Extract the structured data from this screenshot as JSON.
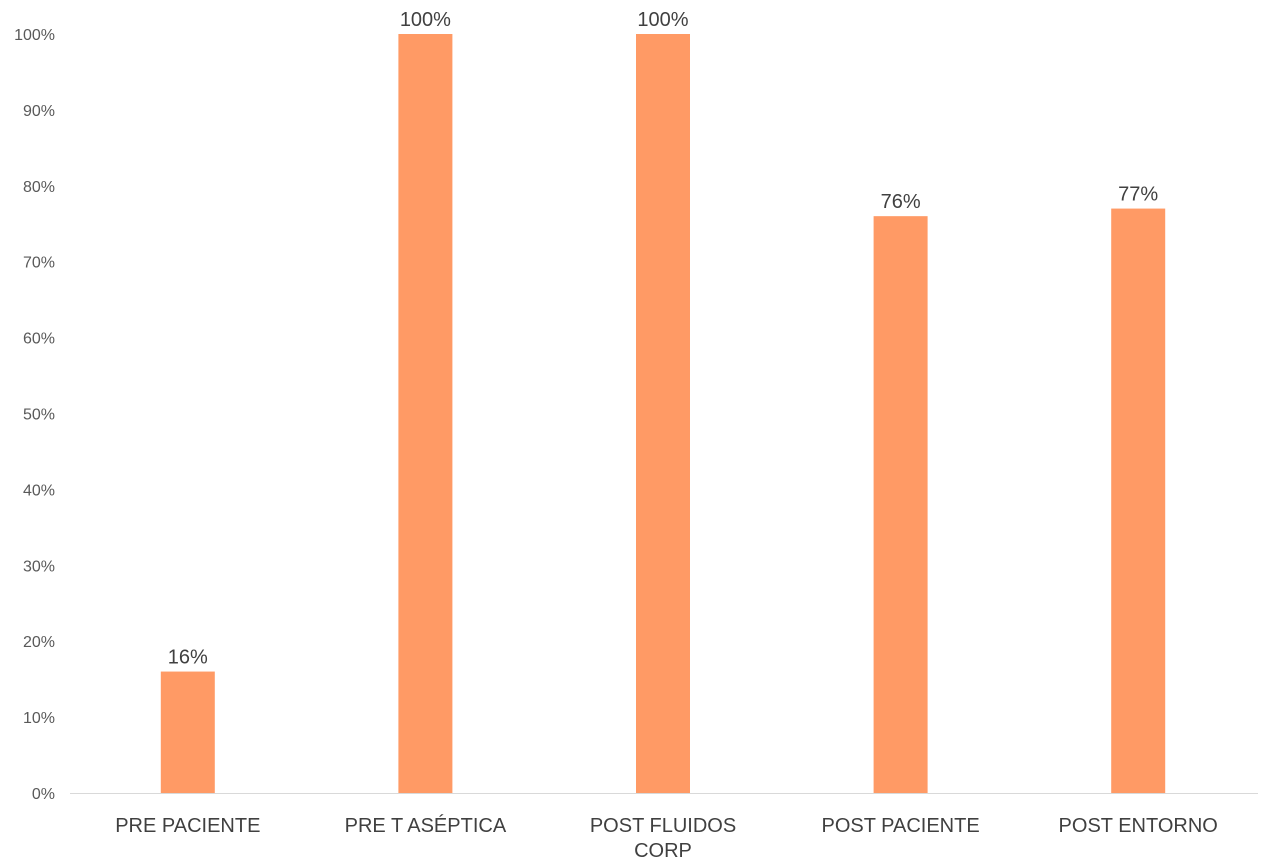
{
  "chart_data": {
    "type": "bar",
    "title": "",
    "xlabel": "",
    "ylabel": "",
    "categories": [
      [
        "PRE PACIENTE"
      ],
      [
        "PRE T ASÉPTICA"
      ],
      [
        "POST FLUIDOS",
        "CORP"
      ],
      [
        "POST PACIENTE"
      ],
      [
        "POST ENTORNO"
      ]
    ],
    "values": [
      16,
      100,
      100,
      76,
      77
    ],
    "data_labels": [
      "16%",
      "100%",
      "100%",
      "76%",
      "77%"
    ],
    "ylim": [
      0,
      100
    ],
    "yticks": [
      0,
      10,
      20,
      30,
      40,
      50,
      60,
      70,
      80,
      90,
      100
    ],
    "ytick_labels": [
      "0%",
      "10%",
      "20%",
      "30%",
      "40%",
      "50%",
      "60%",
      "70%",
      "80%",
      "90%",
      "100%"
    ],
    "grid": false,
    "legend": "none",
    "bar_color": "#FF9A65",
    "axis_color": "#D9D9D9"
  }
}
